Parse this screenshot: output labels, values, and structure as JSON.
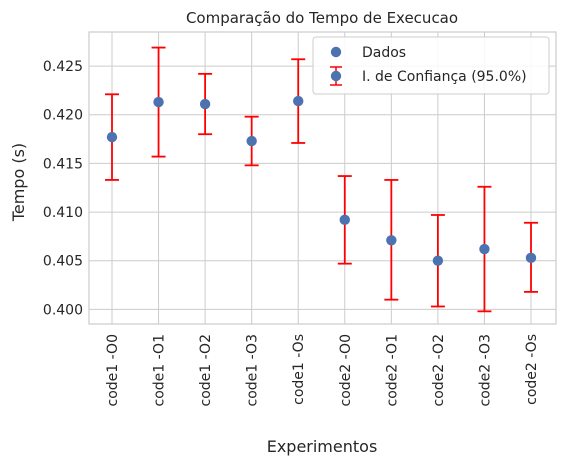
{
  "chart_data": {
    "type": "scatter",
    "title": "Comparação do Tempo de Execucao",
    "xlabel": "Experimentos",
    "ylabel": "Tempo (s)",
    "categories": [
      "code1 -O0",
      "code1 -O1",
      "code1 -O2",
      "code1 -O3",
      "code1 -Os",
      "code2 -O0",
      "code2 -O1",
      "code2 -O2",
      "code2 -O3",
      "code2 -Os"
    ],
    "series": [
      {
        "name": "Dados",
        "values": [
          0.4177,
          0.4213,
          0.4211,
          0.4173,
          0.4214,
          0.4092,
          0.4071,
          0.405,
          0.4062,
          0.4053
        ]
      }
    ],
    "error_bars": {
      "name": "I. de Confiança (95.0%)",
      "lower": [
        0.4133,
        0.4157,
        0.418,
        0.4148,
        0.4171,
        0.4047,
        0.401,
        0.4003,
        0.3998,
        0.4018
      ],
      "upper": [
        0.4221,
        0.4269,
        0.4242,
        0.4198,
        0.4257,
        0.4137,
        0.4133,
        0.4097,
        0.4126,
        0.4089
      ]
    },
    "ylim": [
      0.3985,
      0.4285
    ],
    "yticks": [
      "0.400",
      "0.405",
      "0.410",
      "0.415",
      "0.420",
      "0.425"
    ],
    "grid": true,
    "legend_position": "top-right",
    "colors": {
      "points": "#4c72b0",
      "errorbars": "#ff0000",
      "grid": "#cccccc",
      "axes": "#cccccc"
    }
  }
}
